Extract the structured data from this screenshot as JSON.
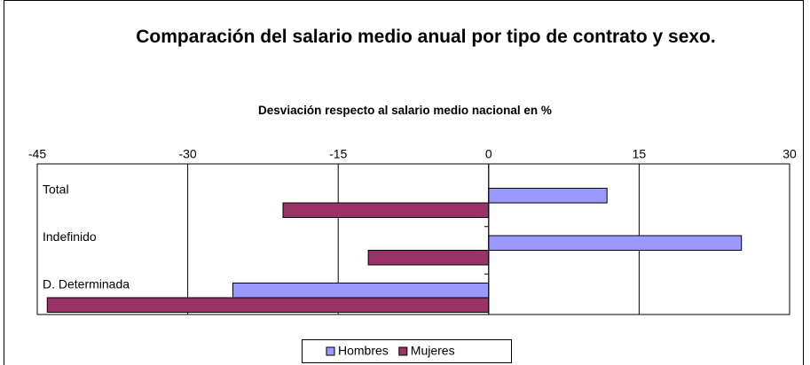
{
  "chart_data": {
    "type": "barh",
    "title": "Comparación del salario medio anual por tipo de contrato y sexo.",
    "subtitle": "Desviación respecto al salario medio nacional en %",
    "categories": [
      "Total",
      "Indefinido",
      "D. Determinada"
    ],
    "series": [
      {
        "name": "Hombres",
        "color": "#9999ff",
        "values": [
          11.8,
          25.2,
          -25.5
        ]
      },
      {
        "name": "Mujeres",
        "color": "#993366",
        "values": [
          -20.5,
          -12,
          -44
        ]
      }
    ],
    "xlim": [
      -45,
      30
    ],
    "xticks": [
      -45,
      -30,
      -15,
      0,
      15,
      30
    ],
    "grid": true,
    "legend": "bottom"
  }
}
